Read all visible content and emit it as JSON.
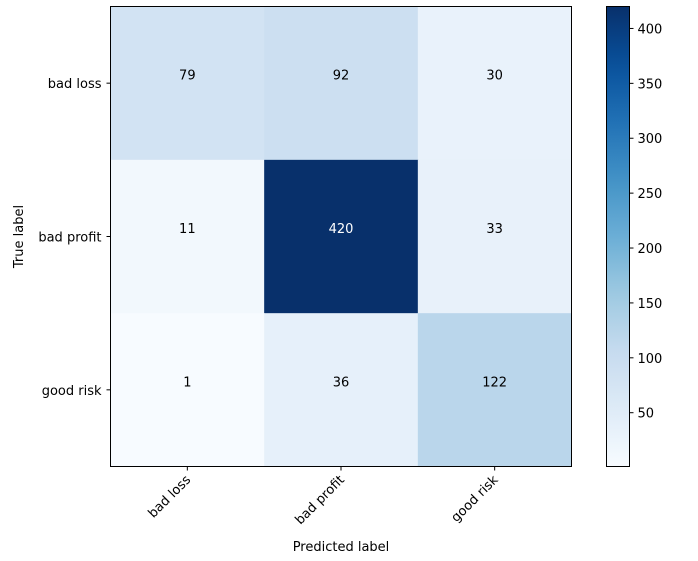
{
  "chart_data": {
    "type": "heatmap",
    "title": "",
    "xlabel": "Predicted label",
    "ylabel": "True label",
    "x_categories": [
      "bad loss",
      "bad profit",
      "good risk"
    ],
    "y_categories": [
      "bad loss",
      "bad profit",
      "good risk"
    ],
    "matrix": [
      [
        79,
        92,
        30
      ],
      [
        11,
        420,
        33
      ],
      [
        1,
        36,
        122
      ]
    ],
    "colormap": "Blues",
    "color_range": [
      1,
      420
    ],
    "colorbar_ticks": [
      50,
      100,
      150,
      200,
      250,
      300,
      350,
      400
    ],
    "grid": false
  }
}
